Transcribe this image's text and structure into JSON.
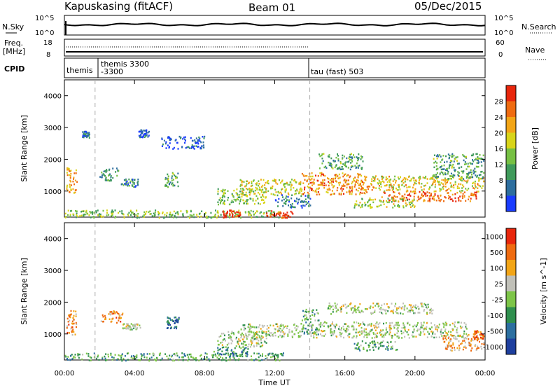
{
  "header": {
    "station": "Kapuskasing (fitACF)",
    "beam": "Beam 01",
    "date": "05/Dec/2015"
  },
  "noise_panel": {
    "left_label": "N.Sky",
    "left_ticks": [
      "10^5",
      "10^0"
    ],
    "right_ticks": [
      "10^5",
      "10^0"
    ],
    "right_label": "N.Search"
  },
  "freq_panel": {
    "left_label_1": "Freq.",
    "left_label_2": "[MHz]",
    "left_ticks": [
      "18",
      "8"
    ],
    "right_ticks": [
      "60",
      "0"
    ],
    "right_label": "Nave"
  },
  "cpid_panel": {
    "label": "CPID",
    "programs": [
      {
        "name": "themis",
        "start_hour": 0.0
      },
      {
        "name": "themis 3300",
        "name2": "-3300",
        "start_hour": 1.75
      },
      {
        "name": "tau (fast) 503",
        "start_hour": 14.0
      }
    ]
  },
  "x_axis": {
    "label": "Time UT",
    "ticks": [
      "00:00",
      "04:00",
      "08:00",
      "12:00",
      "16:00",
      "20:00",
      "00:00"
    ]
  },
  "chart_data": [
    {
      "type": "heatmap",
      "panel": "power",
      "ylabel": "Slant Range [km]",
      "yticks": [
        "1000",
        "2000",
        "3000",
        "4000"
      ],
      "ylim": [
        180,
        4500
      ],
      "xlim_hours": [
        0,
        24
      ],
      "colorbar": {
        "label": "Power [dB]",
        "ticks": [
          "4",
          "8",
          "12",
          "16",
          "20",
          "24",
          "28"
        ],
        "colors": [
          "#1a3cff",
          "#2d6e9e",
          "#3f9a5b",
          "#76c043",
          "#d8d419",
          "#f2a516",
          "#ef6b10",
          "#e8260c"
        ]
      },
      "blobs": [
        {
          "t0": 0.1,
          "t1": 0.7,
          "r0": 900,
          "r1": 1750,
          "v": 0.7
        },
        {
          "t0": 1.0,
          "t1": 1.4,
          "r0": 2700,
          "r1": 2900,
          "v": 0.2
        },
        {
          "t0": 2.0,
          "t1": 3.1,
          "r0": 1350,
          "r1": 1750,
          "v": 0.3
        },
        {
          "t0": 3.2,
          "t1": 4.2,
          "r0": 1150,
          "r1": 1400,
          "v": 0.25
        },
        {
          "t0": 5.7,
          "t1": 6.5,
          "r0": 1150,
          "r1": 1600,
          "v": 0.35
        },
        {
          "t0": 4.2,
          "t1": 4.8,
          "r0": 2700,
          "r1": 2950,
          "v": 0.1
        },
        {
          "t0": 5.5,
          "t1": 8.0,
          "r0": 2350,
          "r1": 2750,
          "v": 0.1
        },
        {
          "t0": 8.7,
          "t1": 11.5,
          "r0": 600,
          "r1": 1100,
          "v": 0.45
        },
        {
          "t0": 10.0,
          "t1": 13.5,
          "r0": 900,
          "r1": 1400,
          "v": 0.55
        },
        {
          "t0": 12.0,
          "t1": 14.0,
          "r0": 500,
          "r1": 900,
          "v": 0.2
        },
        {
          "t0": 13.5,
          "t1": 17.5,
          "r0": 900,
          "r1": 1600,
          "v": 0.75
        },
        {
          "t0": 14.5,
          "t1": 17.0,
          "r0": 1700,
          "r1": 2200,
          "v": 0.35
        },
        {
          "t0": 17.5,
          "t1": 23.9,
          "r0": 1000,
          "r1": 1500,
          "v": 0.6
        },
        {
          "t0": 18.0,
          "t1": 23.5,
          "r0": 700,
          "r1": 1000,
          "v": 0.85
        },
        {
          "t0": 21.0,
          "t1": 23.9,
          "r0": 1400,
          "r1": 2200,
          "v": 0.35
        },
        {
          "t0": 16.5,
          "t1": 20.0,
          "r0": 500,
          "r1": 800,
          "v": 0.5
        },
        {
          "t0": 0.0,
          "t1": 12.5,
          "r0": 180,
          "r1": 420,
          "v": 0.45
        },
        {
          "t0": 9.0,
          "t1": 10.0,
          "r0": 180,
          "r1": 420,
          "v": 0.95
        },
        {
          "t0": 11.5,
          "t1": 13.0,
          "r0": 180,
          "r1": 400,
          "v": 0.95
        }
      ]
    },
    {
      "type": "heatmap",
      "panel": "velocity",
      "ylabel": "Slant Range [km]",
      "yticks": [
        "1000",
        "2000",
        "3000",
        "4000"
      ],
      "ylim": [
        180,
        4500
      ],
      "xlim_hours": [
        0,
        24
      ],
      "colorbar": {
        "label": "Velocity [m s^-1]",
        "ticks": [
          "1000",
          "500",
          "100",
          "25",
          "-25",
          "-100",
          "-500",
          "-1000"
        ],
        "colors": [
          "#1e3f9e",
          "#2c6fa0",
          "#2f8f4e",
          "#7dc548",
          "#c0c0b8",
          "#f2a516",
          "#ef6b10",
          "#e8260c"
        ]
      },
      "blobs": [
        {
          "t0": 0.1,
          "t1": 0.7,
          "r0": 900,
          "r1": 1750,
          "v": 0.75
        },
        {
          "t0": 2.0,
          "t1": 3.3,
          "r0": 1350,
          "r1": 1750,
          "v": 0.75
        },
        {
          "t0": 3.3,
          "t1": 4.3,
          "r0": 1150,
          "r1": 1350,
          "v": 0.5
        },
        {
          "t0": 5.8,
          "t1": 6.5,
          "r0": 1200,
          "r1": 1550,
          "v": 0.2
        },
        {
          "t0": 8.7,
          "t1": 11.5,
          "r0": 600,
          "r1": 1100,
          "v": 0.5
        },
        {
          "t0": 10.0,
          "t1": 13.5,
          "r0": 900,
          "r1": 1350,
          "v": 0.5
        },
        {
          "t0": 13.5,
          "t1": 14.5,
          "r0": 1000,
          "r1": 1800,
          "v": 0.35
        },
        {
          "t0": 14.0,
          "t1": 23.0,
          "r0": 900,
          "r1": 1400,
          "v": 0.5
        },
        {
          "t0": 15.0,
          "t1": 21.0,
          "r0": 1650,
          "r1": 2000,
          "v": 0.5
        },
        {
          "t0": 21.5,
          "t1": 23.9,
          "r0": 500,
          "r1": 1000,
          "v": 0.7
        },
        {
          "t0": 23.3,
          "t1": 23.9,
          "r0": 850,
          "r1": 1150,
          "v": 0.85
        },
        {
          "t0": 16.5,
          "t1": 19.0,
          "r0": 500,
          "r1": 800,
          "v": 0.35
        },
        {
          "t0": 0.0,
          "t1": 12.5,
          "r0": 180,
          "r1": 420,
          "v": 0.35
        },
        {
          "t0": 8.5,
          "t1": 10.5,
          "r0": 300,
          "r1": 600,
          "v": 0.25
        }
      ]
    }
  ]
}
